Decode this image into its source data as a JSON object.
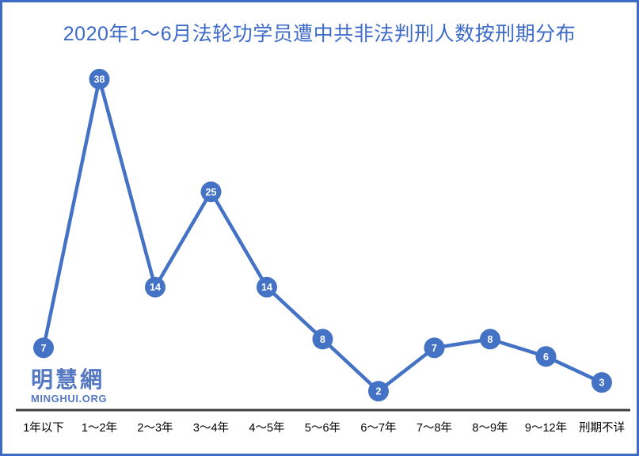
{
  "page": {
    "border_color": "#3E6CC4",
    "background": "#FFFFFF"
  },
  "chart_data": {
    "type": "line",
    "title": "2020年1～6月法轮功学员遭中共非法判刑人数按刑期分布",
    "categories": [
      "1年以下",
      "1～2年",
      "2～3年",
      "3～4年",
      "4～5年",
      "5～6年",
      "6～7年",
      "7～8年",
      "8～9年",
      "9～12年",
      "刑期不详"
    ],
    "values": [
      7,
      38,
      14,
      25,
      14,
      8,
      2,
      7,
      8,
      6,
      3
    ],
    "xlabel": "",
    "ylabel": "",
    "ylim": [
      0,
      40
    ],
    "grid": false,
    "legend": "none",
    "data_labels": "inside circular markers",
    "line_color": "#4472C4",
    "marker_color": "#4472C4",
    "marker_text_color": "#FFFFFF",
    "axis_line_color": "#3F3F3F",
    "x_tick_color": "#000000",
    "title_color": "#3D6BC7"
  },
  "logo": {
    "name": "明慧網",
    "domain": "MINGHUI.ORG",
    "color": "#5578C3"
  }
}
